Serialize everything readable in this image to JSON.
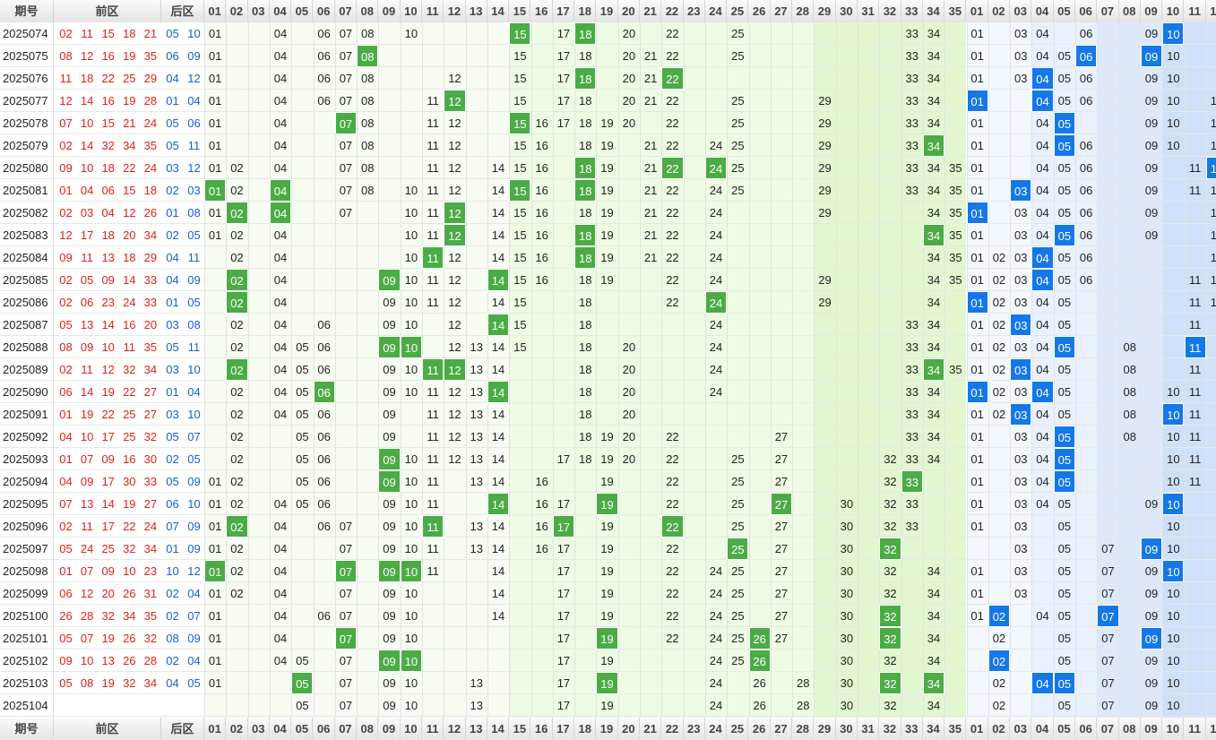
{
  "header": {
    "issue_label": "期号",
    "front_label": "前区",
    "back_label": "后区",
    "front_numbers": [
      "01",
      "02",
      "03",
      "04",
      "05",
      "06",
      "07",
      "08",
      "09",
      "10",
      "11",
      "12",
      "13",
      "14",
      "15",
      "16",
      "17",
      "18",
      "19",
      "20",
      "21",
      "22",
      "23",
      "24",
      "25",
      "26",
      "27",
      "28",
      "29",
      "30",
      "31",
      "32",
      "33",
      "34",
      "35"
    ],
    "back_numbers": [
      "01",
      "02",
      "03",
      "04",
      "05",
      "06",
      "07",
      "08",
      "09",
      "10",
      "11",
      "12"
    ]
  },
  "colors": {
    "front_draw": "#e0201b",
    "back_draw": "#1460d0",
    "front_hit": "#4bab45",
    "back_hit": "#1478e8"
  },
  "rows": [
    {
      "issue": "2025074",
      "front": [
        "02",
        "11",
        "15",
        "18",
        "21"
      ],
      "back": [
        "05",
        "10"
      ],
      "fv": [
        1,
        4,
        6,
        7,
        8,
        10,
        15,
        17,
        18,
        20,
        22,
        25,
        33,
        34
      ],
      "fh": [
        15,
        18
      ],
      "bv": [
        1,
        3,
        4,
        6,
        9,
        10
      ],
      "bh": [
        10
      ]
    },
    {
      "issue": "2025075",
      "front": [
        "08",
        "12",
        "16",
        "19",
        "35"
      ],
      "back": [
        "06",
        "09"
      ],
      "fv": [
        1,
        4,
        6,
        7,
        8,
        15,
        17,
        18,
        20,
        21,
        22,
        25,
        33,
        34
      ],
      "fh": [
        8
      ],
      "bv": [
        1,
        3,
        4,
        5,
        6,
        9,
        10
      ],
      "bh": [
        6,
        9
      ]
    },
    {
      "issue": "2025076",
      "front": [
        "11",
        "18",
        "22",
        "25",
        "29"
      ],
      "back": [
        "04",
        "12"
      ],
      "fv": [
        1,
        4,
        6,
        7,
        8,
        12,
        15,
        17,
        18,
        20,
        21,
        22,
        33,
        34
      ],
      "fh": [
        18,
        22
      ],
      "bv": [
        1,
        3,
        4,
        5,
        6,
        9,
        10
      ],
      "bh": [
        4
      ]
    },
    {
      "issue": "2025077",
      "front": [
        "12",
        "14",
        "16",
        "19",
        "28"
      ],
      "back": [
        "01",
        "04"
      ],
      "fv": [
        1,
        4,
        6,
        7,
        8,
        11,
        12,
        15,
        17,
        18,
        20,
        21,
        22,
        25,
        29,
        33,
        34
      ],
      "fh": [
        12
      ],
      "bv": [
        1,
        4,
        5,
        6,
        9,
        10,
        12
      ],
      "bh": [
        1,
        4
      ]
    },
    {
      "issue": "2025078",
      "front": [
        "07",
        "10",
        "15",
        "21",
        "24"
      ],
      "back": [
        "05",
        "06"
      ],
      "fv": [
        1,
        4,
        7,
        8,
        11,
        12,
        15,
        16,
        17,
        18,
        19,
        20,
        22,
        25,
        29,
        33,
        34
      ],
      "fh": [
        7,
        15
      ],
      "bv": [
        1,
        4,
        5,
        9,
        10,
        12
      ],
      "bh": [
        5
      ]
    },
    {
      "issue": "2025079",
      "front": [
        "02",
        "14",
        "32",
        "34",
        "35"
      ],
      "back": [
        "05",
        "11"
      ],
      "fv": [
        1,
        4,
        7,
        8,
        11,
        12,
        15,
        16,
        18,
        19,
        21,
        22,
        24,
        25,
        29,
        33,
        34
      ],
      "fh": [
        34
      ],
      "bv": [
        1,
        4,
        5,
        6,
        9,
        10,
        12
      ],
      "bh": [
        5
      ]
    },
    {
      "issue": "2025080",
      "front": [
        "09",
        "10",
        "18",
        "22",
        "24"
      ],
      "back": [
        "03",
        "12"
      ],
      "fv": [
        1,
        2,
        4,
        7,
        8,
        11,
        12,
        14,
        15,
        16,
        18,
        19,
        21,
        22,
        24,
        25,
        29,
        33,
        34,
        35
      ],
      "fh": [
        18,
        22,
        24
      ],
      "bv": [
        1,
        4,
        5,
        6,
        9,
        11,
        12
      ],
      "bh": [
        12
      ]
    },
    {
      "issue": "2025081",
      "front": [
        "01",
        "04",
        "06",
        "15",
        "18"
      ],
      "back": [
        "02",
        "03"
      ],
      "fv": [
        1,
        2,
        4,
        7,
        8,
        10,
        11,
        12,
        14,
        15,
        16,
        18,
        19,
        21,
        22,
        24,
        25,
        29,
        33,
        34,
        35
      ],
      "fh": [
        1,
        4,
        15,
        18
      ],
      "bv": [
        1,
        3,
        4,
        5,
        6,
        9,
        11,
        12
      ],
      "bh": [
        3
      ]
    },
    {
      "issue": "2025082",
      "front": [
        "02",
        "03",
        "04",
        "12",
        "26"
      ],
      "back": [
        "01",
        "08"
      ],
      "fv": [
        1,
        2,
        4,
        7,
        10,
        11,
        12,
        14,
        15,
        16,
        18,
        19,
        21,
        22,
        24,
        29,
        34,
        35
      ],
      "fh": [
        2,
        4,
        12
      ],
      "bv": [
        1,
        3,
        4,
        5,
        6,
        9,
        12
      ],
      "bh": [
        1
      ]
    },
    {
      "issue": "2025083",
      "front": [
        "12",
        "17",
        "18",
        "20",
        "34"
      ],
      "back": [
        "02",
        "05"
      ],
      "fv": [
        1,
        2,
        4,
        10,
        11,
        12,
        14,
        15,
        16,
        18,
        19,
        21,
        22,
        24,
        34,
        35
      ],
      "fh": [
        12,
        18,
        34
      ],
      "bv": [
        1,
        3,
        4,
        5,
        6,
        9,
        12
      ],
      "bh": [
        5
      ]
    },
    {
      "issue": "2025084",
      "front": [
        "09",
        "11",
        "13",
        "18",
        "29"
      ],
      "back": [
        "04",
        "11"
      ],
      "fv": [
        2,
        4,
        10,
        11,
        12,
        14,
        15,
        16,
        18,
        19,
        21,
        22,
        24,
        34,
        35
      ],
      "fh": [
        11,
        18
      ],
      "bv": [
        1,
        2,
        3,
        4,
        5,
        6,
        12
      ],
      "bh": [
        4
      ]
    },
    {
      "issue": "2025085",
      "front": [
        "02",
        "05",
        "09",
        "14",
        "33"
      ],
      "back": [
        "04",
        "09"
      ],
      "fv": [
        2,
        4,
        9,
        10,
        11,
        12,
        14,
        15,
        16,
        18,
        19,
        22,
        24,
        29,
        34,
        35
      ],
      "fh": [
        2,
        9,
        14
      ],
      "bv": [
        1,
        2,
        3,
        4,
        5,
        6,
        11,
        12
      ],
      "bh": [
        4
      ]
    },
    {
      "issue": "2025086",
      "front": [
        "02",
        "06",
        "23",
        "24",
        "33"
      ],
      "back": [
        "01",
        "05"
      ],
      "fv": [
        2,
        4,
        9,
        10,
        11,
        12,
        14,
        15,
        18,
        22,
        24,
        29,
        34
      ],
      "fh": [
        2,
        24
      ],
      "bv": [
        1,
        2,
        3,
        4,
        5,
        11,
        12
      ],
      "bh": [
        1
      ]
    },
    {
      "issue": "2025087",
      "front": [
        "05",
        "13",
        "14",
        "16",
        "20"
      ],
      "back": [
        "03",
        "08"
      ],
      "fv": [
        2,
        4,
        6,
        9,
        10,
        12,
        14,
        15,
        18,
        24,
        33,
        34
      ],
      "fh": [
        14
      ],
      "bv": [
        1,
        2,
        3,
        4,
        5,
        11
      ],
      "bh": [
        3
      ]
    },
    {
      "issue": "2025088",
      "front": [
        "08",
        "09",
        "10",
        "11",
        "35"
      ],
      "back": [
        "05",
        "11"
      ],
      "fv": [
        2,
        4,
        5,
        6,
        9,
        10,
        12,
        13,
        14,
        15,
        18,
        20,
        24,
        33,
        34
      ],
      "fh": [
        9,
        10
      ],
      "bv": [
        1,
        2,
        3,
        4,
        5,
        8,
        11
      ],
      "bh": [
        5,
        11
      ]
    },
    {
      "issue": "2025089",
      "front": [
        "02",
        "11",
        "12",
        "32",
        "34"
      ],
      "back": [
        "03",
        "10"
      ],
      "fv": [
        2,
        4,
        5,
        6,
        9,
        10,
        11,
        12,
        13,
        14,
        18,
        20,
        24,
        33,
        34,
        35
      ],
      "fh": [
        2,
        11,
        12,
        34
      ],
      "bv": [
        1,
        2,
        3,
        4,
        5,
        8,
        11
      ],
      "bh": [
        3
      ]
    },
    {
      "issue": "2025090",
      "front": [
        "06",
        "14",
        "19",
        "22",
        "27"
      ],
      "back": [
        "01",
        "04"
      ],
      "fv": [
        2,
        4,
        5,
        6,
        9,
        10,
        11,
        12,
        13,
        14,
        18,
        20,
        24,
        33,
        34
      ],
      "fh": [
        6,
        14
      ],
      "bv": [
        1,
        2,
        3,
        4,
        5,
        8,
        10,
        11
      ],
      "bh": [
        1,
        4
      ]
    },
    {
      "issue": "2025091",
      "front": [
        "01",
        "19",
        "22",
        "25",
        "27"
      ],
      "back": [
        "03",
        "10"
      ],
      "fv": [
        2,
        4,
        5,
        6,
        9,
        11,
        12,
        13,
        14,
        18,
        20,
        33,
        34
      ],
      "fh": [],
      "bv": [
        1,
        2,
        3,
        4,
        5,
        8,
        10,
        11
      ],
      "bh": [
        3,
        10
      ]
    },
    {
      "issue": "2025092",
      "front": [
        "04",
        "10",
        "17",
        "25",
        "32"
      ],
      "back": [
        "05",
        "07"
      ],
      "fv": [
        2,
        5,
        6,
        9,
        11,
        12,
        13,
        14,
        18,
        19,
        20,
        22,
        27,
        33,
        34
      ],
      "fh": [],
      "bv": [
        1,
        3,
        4,
        5,
        8,
        10,
        11
      ],
      "bh": [
        5
      ]
    },
    {
      "issue": "2025093",
      "front": [
        "01",
        "07",
        "09",
        "16",
        "30"
      ],
      "back": [
        "02",
        "05"
      ],
      "fv": [
        2,
        5,
        6,
        9,
        10,
        11,
        12,
        13,
        14,
        17,
        18,
        19,
        20,
        22,
        25,
        27,
        32,
        33,
        34
      ],
      "fh": [
        9
      ],
      "bv": [
        1,
        3,
        4,
        5,
        10,
        11
      ],
      "bh": [
        5
      ]
    },
    {
      "issue": "2025094",
      "front": [
        "04",
        "09",
        "17",
        "30",
        "33"
      ],
      "back": [
        "05",
        "09"
      ],
      "fv": [
        1,
        2,
        5,
        6,
        9,
        10,
        11,
        13,
        14,
        16,
        19,
        22,
        25,
        27,
        32,
        33
      ],
      "fh": [
        9,
        33
      ],
      "bv": [
        1,
        3,
        4,
        5,
        10,
        11
      ],
      "bh": [
        5
      ]
    },
    {
      "issue": "2025095",
      "front": [
        "07",
        "13",
        "14",
        "19",
        "27"
      ],
      "back": [
        "06",
        "10"
      ],
      "fv": [
        1,
        2,
        4,
        5,
        6,
        9,
        10,
        11,
        14,
        16,
        17,
        19,
        22,
        25,
        27,
        30,
        32,
        33
      ],
      "fh": [
        14,
        19,
        27
      ],
      "bv": [
        1,
        3,
        4,
        5,
        9,
        10
      ],
      "bh": [
        10
      ]
    },
    {
      "issue": "2025096",
      "front": [
        "02",
        "11",
        "17",
        "22",
        "24"
      ],
      "back": [
        "07",
        "09"
      ],
      "fv": [
        1,
        2,
        4,
        6,
        7,
        9,
        10,
        11,
        13,
        14,
        16,
        17,
        19,
        22,
        25,
        27,
        30,
        32,
        33
      ],
      "fh": [
        2,
        11,
        17,
        22
      ],
      "bv": [
        1,
        3,
        5,
        10
      ],
      "bh": []
    },
    {
      "issue": "2025097",
      "front": [
        "05",
        "24",
        "25",
        "32",
        "34"
      ],
      "back": [
        "01",
        "09"
      ],
      "fv": [
        1,
        2,
        4,
        7,
        9,
        10,
        11,
        13,
        14,
        16,
        17,
        19,
        22,
        25,
        27,
        30,
        32
      ],
      "fh": [
        25,
        32
      ],
      "bv": [
        3,
        5,
        7,
        9,
        10
      ],
      "bh": [
        9
      ]
    },
    {
      "issue": "2025098",
      "front": [
        "01",
        "07",
        "09",
        "10",
        "23"
      ],
      "back": [
        "10",
        "12"
      ],
      "fv": [
        1,
        2,
        4,
        7,
        9,
        10,
        11,
        14,
        17,
        19,
        22,
        24,
        25,
        27,
        30,
        32,
        34
      ],
      "fh": [
        1,
        7,
        9,
        10
      ],
      "bv": [
        1,
        3,
        5,
        7,
        9,
        10
      ],
      "bh": [
        10
      ]
    },
    {
      "issue": "2025099",
      "front": [
        "06",
        "12",
        "20",
        "26",
        "31"
      ],
      "back": [
        "02",
        "04"
      ],
      "fv": [
        1,
        2,
        4,
        7,
        9,
        10,
        14,
        17,
        19,
        22,
        24,
        25,
        27,
        30,
        32,
        34
      ],
      "fh": [],
      "bv": [
        1,
        3,
        5,
        7,
        9,
        10
      ],
      "bh": []
    },
    {
      "issue": "2025100",
      "front": [
        "26",
        "28",
        "32",
        "34",
        "35"
      ],
      "back": [
        "02",
        "07"
      ],
      "fv": [
        1,
        4,
        6,
        7,
        9,
        10,
        14,
        17,
        19,
        22,
        24,
        25,
        27,
        30,
        32,
        34
      ],
      "fh": [
        32
      ],
      "bv": [
        1,
        2,
        4,
        5,
        7,
        9,
        10
      ],
      "bh": [
        2,
        7
      ]
    },
    {
      "issue": "2025101",
      "front": [
        "05",
        "07",
        "19",
        "26",
        "32"
      ],
      "back": [
        "08",
        "09"
      ],
      "fv": [
        1,
        4,
        7,
        9,
        10,
        17,
        19,
        22,
        24,
        25,
        26,
        27,
        30,
        32,
        34
      ],
      "fh": [
        7,
        19,
        26,
        32
      ],
      "bv": [
        2,
        5,
        7,
        9,
        10
      ],
      "bh": [
        9
      ]
    },
    {
      "issue": "2025102",
      "front": [
        "09",
        "10",
        "13",
        "26",
        "28"
      ],
      "back": [
        "02",
        "04"
      ],
      "fv": [
        1,
        4,
        5,
        7,
        9,
        10,
        17,
        19,
        24,
        25,
        26,
        30,
        32,
        34
      ],
      "fh": [
        9,
        10,
        26
      ],
      "bv": [
        2,
        5,
        7,
        9,
        10
      ],
      "bh": [
        2
      ]
    },
    {
      "issue": "2025103",
      "front": [
        "05",
        "08",
        "19",
        "32",
        "34"
      ],
      "back": [
        "04",
        "05"
      ],
      "fv": [
        1,
        5,
        7,
        9,
        10,
        13,
        17,
        19,
        24,
        26,
        28,
        30,
        32,
        34
      ],
      "fh": [
        5,
        19,
        32,
        34
      ],
      "bv": [
        2,
        4,
        5,
        7,
        9,
        10
      ],
      "bh": [
        4,
        5
      ]
    },
    {
      "issue": "2025104",
      "front": [],
      "back": [],
      "fv": [
        5,
        7,
        9,
        10,
        13,
        17,
        19,
        24,
        26,
        28,
        30,
        32,
        34
      ],
      "fh": [],
      "bv": [
        2,
        5,
        7,
        9,
        10
      ],
      "bh": []
    }
  ]
}
